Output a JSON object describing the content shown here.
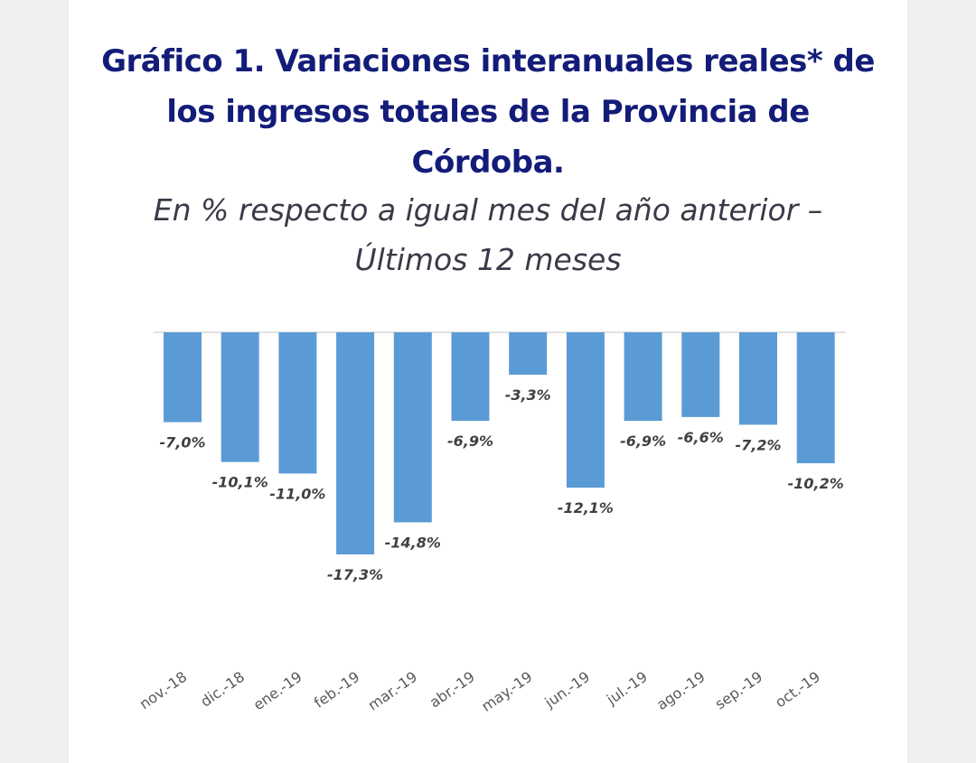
{
  "header": {
    "title_lines": [
      "Gráfico 1. Variaciones interanuales reales* de",
      "los ingresos totales de la Provincia de",
      "Córdoba."
    ],
    "subtitle_lines": [
      "En % respecto a igual mes del año anterior –",
      "Últimos 12 meses"
    ]
  },
  "colors": {
    "title": "#131c78",
    "bar": "#5b9bd5",
    "labels": "#404040",
    "axis": "#d9d9d9"
  },
  "chart_data": {
    "type": "bar",
    "title": "Gráfico 1. Variaciones interanuales reales* de los ingresos totales de la Provincia de Córdoba.",
    "subtitle": "En % respecto a igual mes del año anterior – Últimos 12 meses",
    "categories": [
      "nov.-18",
      "dic.-18",
      "ene.-19",
      "feb.-19",
      "mar.-19",
      "abr.-19",
      "may.-19",
      "jun.-19",
      "jul.-19",
      "ago.-19",
      "sep.-19",
      "oct.-19"
    ],
    "values": [
      -7.0,
      -10.1,
      -11.0,
      -17.3,
      -14.8,
      -6.9,
      -3.3,
      -12.1,
      -6.9,
      -6.6,
      -7.2,
      -10.2
    ],
    "data_labels": [
      "-7,0%",
      "-10,1%",
      "-11,0%",
      "-17,3%",
      "-14,8%",
      "-6,9%",
      "-3,3%",
      "-12,1%",
      "-6,9%",
      "-6,6%",
      "-7,2%",
      "-10,2%"
    ],
    "ylim": [
      -20,
      0
    ],
    "grid": false,
    "legend": "none"
  }
}
